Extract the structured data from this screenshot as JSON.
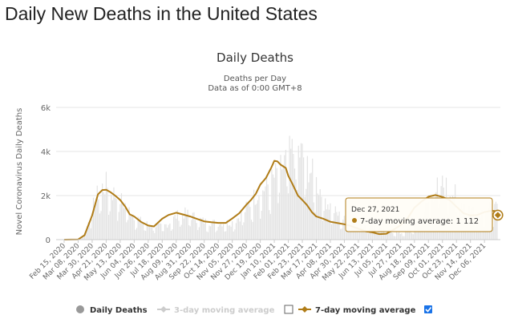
{
  "page": {
    "title": "Daily New Deaths in the United States"
  },
  "chart_data": {
    "type": "bar",
    "title": "Daily Deaths",
    "subtitle_lines": [
      "Deaths per Day",
      "Data as of 0:00 GMT+8"
    ],
    "ylabel": "Novel Coronavirus Daily Deaths",
    "ylim": [
      0,
      6000
    ],
    "y_ticks": [
      "0",
      "2k",
      "4k",
      "6k"
    ],
    "x_tick_labels": [
      "Feb 15, 2020",
      "Mar 08, 2020",
      "Mar 30, 2020",
      "Apr 21, 2020",
      "May 13, 2020",
      "Jun 04, 2020",
      "Jun 26, 2020",
      "Jul 18, 2020",
      "Aug 09, 2020",
      "Aug 31, 2020",
      "Sep 22, 2020",
      "Oct 14, 2020",
      "Nov 05, 2020",
      "Nov 27, 2020",
      "Dec 19, 2020",
      "Jan 10, 2021",
      "Feb 01, 2021",
      "Feb 23, 2021",
      "Mar 17, 2021",
      "Apr 08, 2021",
      "Apr 30, 2021",
      "May 22, 2021",
      "Jun 13, 2021",
      "Jul 05, 2021",
      "Jul 27, 2021",
      "Aug 18, 2021",
      "Sep 09, 2021",
      "Oct 01, 2021",
      "Oct 23, 2021",
      "Nov 14, 2021",
      "Dec 06, 2021"
    ],
    "grid": true,
    "legend_placement": "bottom-center",
    "series": [
      {
        "name": "Daily Deaths",
        "type": "bar",
        "color": "#e3e3e3",
        "daily_interval": true,
        "approximate_envelope": [
          0,
          0,
          20,
          300,
          1500,
          2400,
          2700,
          2300,
          2000,
          1600,
          1200,
          900,
          750,
          700,
          640,
          800,
          1150,
          1300,
          1220,
          1060,
          900,
          850,
          810,
          830,
          840,
          1100,
          1500,
          2000,
          2400,
          2600,
          3000,
          3500,
          4000,
          4400,
          4200,
          3600,
          2900,
          2200,
          1700,
          1300,
          1000,
          850,
          800,
          750,
          700,
          600,
          480,
          400,
          300,
          400,
          600,
          1100,
          1700,
          2400,
          2700,
          2500,
          2200,
          1800,
          1600,
          1400,
          1400,
          1500,
          1500
        ]
      },
      {
        "name": "3-day moving average",
        "type": "line",
        "color": "#cccccc",
        "visible": false
      },
      {
        "name": "7-day moving average",
        "type": "line",
        "color": "#b07c17",
        "x": [
          "2020-02-15",
          "2020-03-08",
          "2020-03-18",
          "2020-03-30",
          "2020-04-08",
          "2020-04-15",
          "2020-04-21",
          "2020-04-28",
          "2020-05-05",
          "2020-05-13",
          "2020-05-21",
          "2020-05-28",
          "2020-06-04",
          "2020-06-15",
          "2020-06-26",
          "2020-07-05",
          "2020-07-18",
          "2020-07-28",
          "2020-08-09",
          "2020-08-21",
          "2020-08-31",
          "2020-09-10",
          "2020-09-22",
          "2020-10-03",
          "2020-10-14",
          "2020-10-26",
          "2020-11-05",
          "2020-11-16",
          "2020-11-27",
          "2020-12-05",
          "2020-12-12",
          "2020-12-19",
          "2020-12-28",
          "2021-01-05",
          "2021-01-10",
          "2021-01-15",
          "2021-01-20",
          "2021-01-28",
          "2021-02-01",
          "2021-02-08",
          "2021-02-16",
          "2021-02-23",
          "2021-03-02",
          "2021-03-10",
          "2021-03-17",
          "2021-03-28",
          "2021-04-08",
          "2021-04-20",
          "2021-04-30",
          "2021-05-10",
          "2021-05-22",
          "2021-06-02",
          "2021-06-13",
          "2021-06-24",
          "2021-07-05",
          "2021-07-16",
          "2021-07-27",
          "2021-08-08",
          "2021-08-18",
          "2021-08-30",
          "2021-09-09",
          "2021-09-20",
          "2021-10-01",
          "2021-10-12",
          "2021-10-23",
          "2021-11-03",
          "2021-11-14",
          "2021-11-25",
          "2021-12-06",
          "2021-12-16",
          "2021-12-22",
          "2021-12-27"
        ],
        "values": [
          0,
          10,
          200,
          1100,
          2050,
          2250,
          2260,
          2150,
          2000,
          1800,
          1500,
          1150,
          1050,
          800,
          640,
          600,
          950,
          1120,
          1220,
          1130,
          1050,
          950,
          830,
          790,
          760,
          760,
          960,
          1200,
          1580,
          1820,
          2080,
          2500,
          2800,
          3250,
          3580,
          3550,
          3400,
          3250,
          2900,
          2500,
          2000,
          1800,
          1580,
          1250,
          1050,
          950,
          810,
          750,
          700,
          620,
          500,
          380,
          330,
          250,
          270,
          450,
          650,
          1000,
          1450,
          1750,
          1950,
          2020,
          1940,
          1800,
          1500,
          1200,
          1100,
          1120,
          1250,
          1310,
          1300,
          1112
        ],
        "marker_label": {
          "date": "Dec 27, 2021",
          "value": "1 112"
        }
      }
    ],
    "tooltip": {
      "date": "Dec 27, 2021",
      "series_name": "7-day moving average",
      "value": "1 112"
    },
    "legend": [
      {
        "label": "Daily Deaths",
        "checkbox": false,
        "checked": false,
        "dimmed": false
      },
      {
        "label": "3-day moving average",
        "checkbox": true,
        "checked": false,
        "dimmed": true
      },
      {
        "label": "7-day moving average",
        "checkbox": true,
        "checked": true,
        "dimmed": false
      }
    ],
    "colors": {
      "line": "#b07c17",
      "bars": "#e3e3e3",
      "grid": "#e6e6e6",
      "checkbox_checked": "#1a73e8"
    }
  }
}
